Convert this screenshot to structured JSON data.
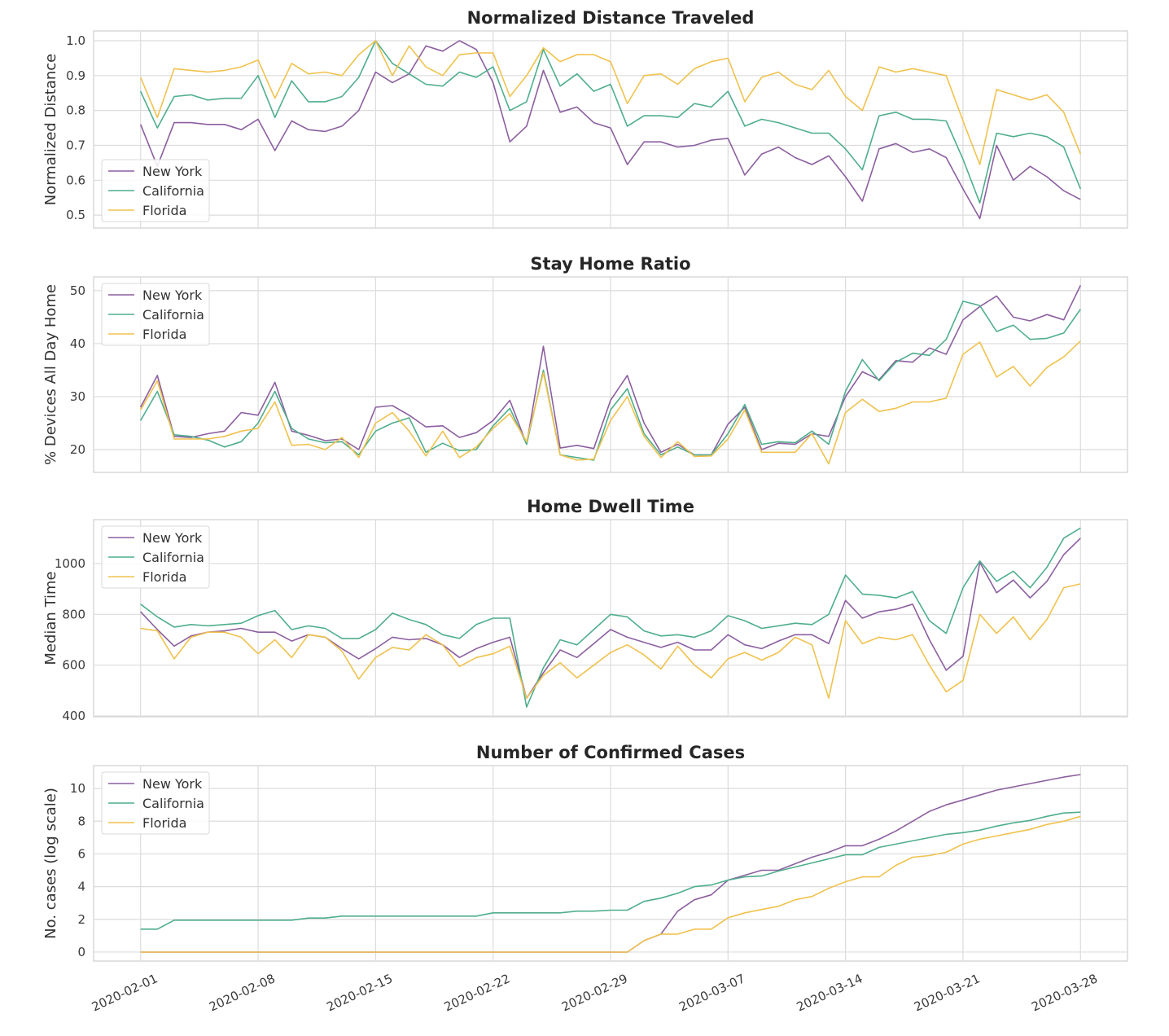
{
  "colors": {
    "New York": "#8c5fa0",
    "California": "#4fae8c",
    "Florida": "#f0c24e",
    "grid": "#dcdcdc",
    "background": "#ffffff"
  },
  "chart_data": [
    {
      "type": "line",
      "title": "Normalized Distance Traveled",
      "xlabel": "",
      "ylabel": "Normalized Distance",
      "ylim": [
        0.463,
        1.028
      ],
      "yticks": [
        "0.5",
        "0.6",
        "0.7",
        "0.8",
        "0.9",
        "1.0"
      ],
      "grid": true,
      "legend": "lower-left",
      "series": [
        {
          "name": "New York",
          "values": [
            0.76,
            0.64,
            0.765,
            0.765,
            0.76,
            0.76,
            0.745,
            0.775,
            0.685,
            0.77,
            0.745,
            0.74,
            0.755,
            0.8,
            0.91,
            0.88,
            0.905,
            0.985,
            0.97,
            1.0,
            0.975,
            0.88,
            0.71,
            0.755,
            0.915,
            0.795,
            0.81,
            0.765,
            0.75,
            0.645,
            0.71,
            0.71,
            0.695,
            0.7,
            0.715,
            0.72,
            0.615,
            0.675,
            0.695,
            0.665,
            0.645,
            0.67,
            0.61,
            0.54,
            0.69,
            0.705,
            0.68,
            0.69,
            0.665,
            0.575,
            0.49,
            0.7,
            0.6,
            0.64,
            0.61,
            0.57,
            0.545
          ]
        },
        {
          "name": "California",
          "values": [
            0.855,
            0.75,
            0.84,
            0.845,
            0.83,
            0.835,
            0.835,
            0.9,
            0.78,
            0.885,
            0.825,
            0.825,
            0.84,
            0.895,
            1.0,
            0.935,
            0.905,
            0.875,
            0.87,
            0.91,
            0.895,
            0.925,
            0.8,
            0.825,
            0.975,
            0.87,
            0.905,
            0.855,
            0.875,
            0.755,
            0.785,
            0.785,
            0.78,
            0.82,
            0.81,
            0.855,
            0.755,
            0.775,
            0.765,
            0.75,
            0.735,
            0.735,
            0.69,
            0.63,
            0.785,
            0.795,
            0.775,
            0.775,
            0.77,
            0.66,
            0.535,
            0.735,
            0.725,
            0.735,
            0.725,
            0.695,
            0.575
          ]
        },
        {
          "name": "Florida",
          "values": [
            0.895,
            0.78,
            0.92,
            0.915,
            0.91,
            0.915,
            0.925,
            0.945,
            0.835,
            0.935,
            0.905,
            0.91,
            0.9,
            0.96,
            1.0,
            0.9,
            0.985,
            0.925,
            0.9,
            0.96,
            0.965,
            0.965,
            0.84,
            0.9,
            0.98,
            0.94,
            0.96,
            0.96,
            0.94,
            0.82,
            0.9,
            0.905,
            0.875,
            0.92,
            0.94,
            0.95,
            0.825,
            0.895,
            0.91,
            0.875,
            0.86,
            0.915,
            0.84,
            0.8,
            0.925,
            0.91,
            0.92,
            0.91,
            0.9,
            0.77,
            0.645,
            0.86,
            0.845,
            0.83,
            0.845,
            0.795,
            0.675
          ]
        }
      ]
    },
    {
      "type": "line",
      "title": "Stay Home Ratio",
      "xlabel": "",
      "ylabel": "% Devices All Day Home",
      "ylim": [
        15.7,
        52.6
      ],
      "yticks": [
        "20",
        "30",
        "40",
        "50"
      ],
      "grid": true,
      "legend": "upper-left",
      "series": [
        {
          "name": "New York",
          "values": [
            28,
            34,
            22.5,
            22.3,
            23,
            23.5,
            27,
            26.5,
            32.7,
            23.5,
            22.7,
            21.7,
            22,
            20,
            28,
            28.3,
            26.5,
            24.3,
            24.5,
            22.3,
            23.2,
            25.5,
            29.3,
            21,
            39.5,
            20.3,
            20.8,
            20.2,
            29.3,
            34,
            25,
            19.5,
            21,
            19,
            19,
            24.8,
            28,
            20,
            21.2,
            21,
            23,
            22.5,
            30,
            34.7,
            33.2,
            36.8,
            36.5,
            39.2,
            38,
            44.5,
            47,
            49,
            45,
            44.3,
            45.5,
            44.5,
            51
          ]
        },
        {
          "name": "California",
          "values": [
            25.5,
            31,
            22.8,
            22.5,
            21.8,
            20.5,
            21.5,
            25,
            31,
            24,
            22,
            21.3,
            21.5,
            19,
            23.5,
            25,
            26,
            19.5,
            21.2,
            19.8,
            20,
            24.5,
            27.8,
            21,
            35,
            19,
            18.5,
            18,
            27.5,
            31.5,
            23,
            19,
            20.5,
            19,
            19,
            23,
            28.5,
            21,
            21.5,
            21.3,
            23.5,
            21,
            31,
            37,
            33,
            36.5,
            38.2,
            37.8,
            40.8,
            48,
            47.2,
            42.3,
            43.5,
            40.8,
            41,
            42,
            46.5
          ]
        },
        {
          "name": "Florida",
          "values": [
            27.5,
            33,
            22,
            22,
            22,
            22.5,
            23.5,
            24,
            29,
            20.8,
            21,
            20,
            22.3,
            18.5,
            25,
            27,
            23.5,
            18.8,
            23.5,
            18.5,
            20.5,
            24,
            26.8,
            21.5,
            34.5,
            19,
            18,
            18.2,
            25.5,
            30,
            22.5,
            18.5,
            21.5,
            18.7,
            18.8,
            22,
            27.5,
            19.5,
            19.5,
            19.5,
            23,
            17.3,
            27,
            29.5,
            27.2,
            27.8,
            29,
            29,
            29.7,
            38,
            40.3,
            33.7,
            35.7,
            32,
            35.5,
            37.5,
            40.5
          ]
        }
      ]
    },
    {
      "type": "line",
      "title": "Home Dwell Time",
      "xlabel": "",
      "ylabel": "Median Time",
      "ylim": [
        397,
        1173
      ],
      "yticks": [
        "400",
        "600",
        "800",
        "1000"
      ],
      "grid": true,
      "legend": "upper-left",
      "series": [
        {
          "name": "New York",
          "values": [
            810,
            740,
            675,
            715,
            730,
            735,
            745,
            730,
            730,
            695,
            720,
            710,
            665,
            625,
            665,
            710,
            700,
            705,
            680,
            630,
            665,
            690,
            710,
            470,
            570,
            660,
            630,
            685,
            740,
            710,
            690,
            670,
            690,
            660,
            660,
            720,
            680,
            665,
            695,
            720,
            720,
            685,
            855,
            785,
            810,
            820,
            840,
            700,
            580,
            635,
            1005,
            885,
            935,
            865,
            930,
            1035,
            1100
          ]
        },
        {
          "name": "California",
          "values": [
            840,
            790,
            750,
            760,
            755,
            760,
            765,
            795,
            815,
            740,
            755,
            745,
            705,
            705,
            740,
            805,
            780,
            760,
            720,
            705,
            760,
            785,
            785,
            435,
            590,
            700,
            680,
            740,
            800,
            790,
            735,
            715,
            720,
            710,
            735,
            795,
            775,
            745,
            755,
            765,
            760,
            800,
            955,
            880,
            875,
            865,
            890,
            775,
            725,
            905,
            1010,
            930,
            970,
            905,
            985,
            1100,
            1140
          ]
        },
        {
          "name": "Florida",
          "values": [
            745,
            735,
            625,
            710,
            730,
            730,
            710,
            645,
            700,
            630,
            720,
            710,
            655,
            545,
            630,
            670,
            660,
            720,
            680,
            595,
            630,
            645,
            675,
            470,
            560,
            610,
            550,
            600,
            650,
            680,
            640,
            585,
            675,
            600,
            550,
            625,
            650,
            620,
            650,
            710,
            680,
            470,
            775,
            685,
            710,
            700,
            720,
            600,
            495,
            540,
            800,
            725,
            790,
            700,
            780,
            905,
            920
          ]
        }
      ]
    },
    {
      "type": "line",
      "title": "Number of Confirmed Cases",
      "xlabel": "",
      "ylabel": "No. cases (log scale)",
      "ylim": [
        -0.55,
        11.4
      ],
      "yticks": [
        "0",
        "2",
        "4",
        "6",
        "8",
        "10"
      ],
      "grid": true,
      "legend": "upper-left",
      "series": [
        {
          "name": "New York",
          "values": [
            0,
            0,
            0,
            0,
            0,
            0,
            0,
            0,
            0,
            0,
            0,
            0,
            0,
            0,
            0,
            0,
            0,
            0,
            0,
            0,
            0,
            0,
            0,
            0,
            0,
            0,
            0,
            0,
            0,
            0,
            0.7,
            1.1,
            2.5,
            3.2,
            3.5,
            4.4,
            4.7,
            5.0,
            5.0,
            5.4,
            5.8,
            6.1,
            6.5,
            6.5,
            6.9,
            7.4,
            8.0,
            8.6,
            9.0,
            9.3,
            9.6,
            9.9,
            10.1,
            10.3,
            10.5,
            10.7,
            10.85
          ]
        },
        {
          "name": "California",
          "values": [
            1.4,
            1.4,
            1.95,
            1.95,
            1.95,
            1.95,
            1.95,
            1.95,
            1.95,
            1.95,
            2.08,
            2.08,
            2.2,
            2.2,
            2.2,
            2.2,
            2.2,
            2.2,
            2.2,
            2.2,
            2.2,
            2.4,
            2.4,
            2.4,
            2.4,
            2.4,
            2.5,
            2.5,
            2.56,
            2.56,
            3.1,
            3.3,
            3.6,
            4.0,
            4.1,
            4.4,
            4.6,
            4.65,
            4.95,
            5.2,
            5.45,
            5.7,
            5.95,
            5.95,
            6.4,
            6.6,
            6.8,
            7.0,
            7.2,
            7.3,
            7.45,
            7.7,
            7.9,
            8.05,
            8.3,
            8.5,
            8.55
          ]
        },
        {
          "name": "Florida",
          "values": [
            0,
            0,
            0,
            0,
            0,
            0,
            0,
            0,
            0,
            0,
            0,
            0,
            0,
            0,
            0,
            0,
            0,
            0,
            0,
            0,
            0,
            0,
            0,
            0,
            0,
            0,
            0,
            0,
            0,
            0,
            0.7,
            1.1,
            1.1,
            1.4,
            1.4,
            2.1,
            2.4,
            2.6,
            2.8,
            3.2,
            3.4,
            3.9,
            4.3,
            4.6,
            4.6,
            5.3,
            5.8,
            5.9,
            6.1,
            6.6,
            6.9,
            7.1,
            7.3,
            7.5,
            7.8,
            8.0,
            8.3
          ]
        }
      ]
    }
  ],
  "x": [
    "2020-02-01",
    "2020-02-02",
    "2020-02-03",
    "2020-02-04",
    "2020-02-05",
    "2020-02-06",
    "2020-02-07",
    "2020-02-08",
    "2020-02-09",
    "2020-02-10",
    "2020-02-11",
    "2020-02-12",
    "2020-02-13",
    "2020-02-14",
    "2020-02-15",
    "2020-02-16",
    "2020-02-17",
    "2020-02-18",
    "2020-02-19",
    "2020-02-20",
    "2020-02-21",
    "2020-02-22",
    "2020-02-23",
    "2020-02-24",
    "2020-02-25",
    "2020-02-26",
    "2020-02-27",
    "2020-02-28",
    "2020-02-29",
    "2020-03-01",
    "2020-03-02",
    "2020-03-03",
    "2020-03-04",
    "2020-03-05",
    "2020-03-06",
    "2020-03-07",
    "2020-03-08",
    "2020-03-09",
    "2020-03-10",
    "2020-03-11",
    "2020-03-12",
    "2020-03-13",
    "2020-03-14",
    "2020-03-15",
    "2020-03-16",
    "2020-03-17",
    "2020-03-18",
    "2020-03-19",
    "2020-03-20",
    "2020-03-21",
    "2020-03-22",
    "2020-03-23",
    "2020-03-24",
    "2020-03-25",
    "2020-03-26",
    "2020-03-27",
    "2020-03-28"
  ],
  "xticks": [
    "2020-02-01",
    "2020-02-08",
    "2020-02-15",
    "2020-02-22",
    "2020-02-29",
    "2020-03-07",
    "2020-03-14",
    "2020-03-21",
    "2020-03-28"
  ]
}
